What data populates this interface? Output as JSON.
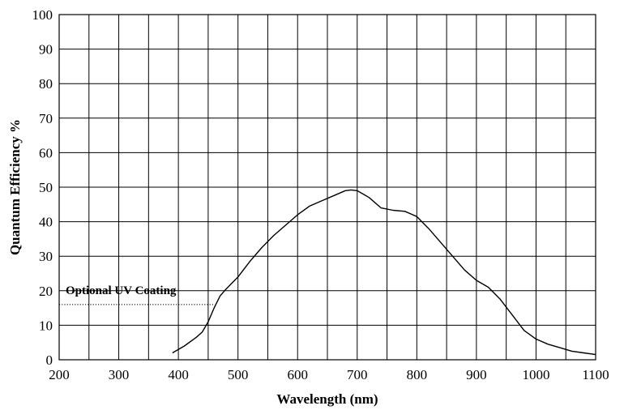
{
  "chart_data": {
    "type": "line",
    "title": "",
    "xlabel": "Wavelength (nm)",
    "ylabel": "Quantum Efficiency %",
    "xlim": [
      200,
      1100
    ],
    "ylim": [
      0,
      100
    ],
    "x_ticks": [
      200,
      300,
      400,
      500,
      600,
      700,
      800,
      900,
      1000,
      1100
    ],
    "y_ticks": [
      0,
      10,
      20,
      30,
      40,
      50,
      60,
      70,
      80,
      90,
      100
    ],
    "x_grid_step": 50,
    "y_grid_step": 10,
    "grid": true,
    "legend": "none",
    "colors": {
      "line": "#000000",
      "grid": "#000000",
      "background": "#ffffff"
    },
    "series": [
      {
        "x": [
          390,
          410,
          430,
          440,
          450,
          460,
          470,
          480,
          500,
          520,
          540,
          560,
          580,
          600,
          620,
          640,
          660,
          680,
          690,
          700,
          710,
          720,
          740,
          760,
          780,
          800,
          820,
          840,
          860,
          880,
          900,
          920,
          940,
          960,
          980,
          1000,
          1020,
          1040,
          1060,
          1080,
          1100
        ],
        "y": [
          2,
          4,
          6.5,
          8,
          11,
          15,
          18.5,
          20.5,
          24,
          28.5,
          32.5,
          36,
          39,
          42,
          44.5,
          46,
          47.5,
          49,
          49.2,
          49,
          48,
          47,
          44,
          43.3,
          43,
          41.5,
          38,
          34,
          30,
          26,
          23,
          21,
          17.5,
          13,
          8.5,
          6,
          4.5,
          3.5,
          2.5,
          2,
          1.5
        ]
      }
    ],
    "annotations": [
      {
        "text": "Optional UV Coating",
        "line_y": 16,
        "line_x": [
          200,
          460
        ],
        "line_style": "dotted"
      }
    ]
  }
}
